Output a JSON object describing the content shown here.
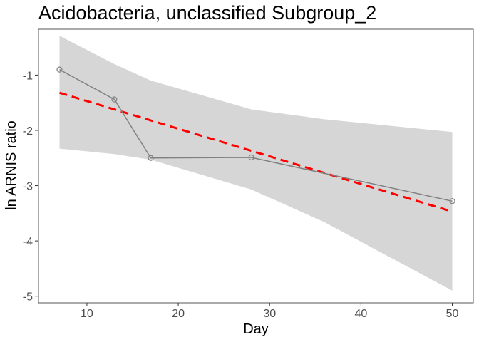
{
  "chart_data": {
    "type": "line",
    "title": "Acidobacteria, unclassified Subgroup_2",
    "xlabel": "Day",
    "ylabel": "ln ARNIS ratio",
    "xlim": [
      4.7,
      52.3
    ],
    "ylim": [
      -5.12,
      -0.17
    ],
    "x_ticks": [
      10,
      20,
      30,
      40,
      50
    ],
    "y_ticks": [
      -1,
      -2,
      -3,
      -4,
      -5
    ],
    "grid": false,
    "colors": {
      "observed": "#808080",
      "fit": "#ff0000",
      "confidence_band": "#d6d6d6",
      "panel_border": "#555555"
    },
    "series": [
      {
        "kind": "observed",
        "style": "line-with-open-circles",
        "x": [
          7,
          13,
          17,
          28,
          50
        ],
        "y": [
          -0.9,
          -1.44,
          -2.5,
          -2.49,
          -3.28
        ]
      },
      {
        "kind": "linear-fit",
        "style": "dashed",
        "x": [
          7,
          50
        ],
        "y": [
          -1.32,
          -3.47
        ]
      },
      {
        "kind": "confidence-band",
        "style": "filled",
        "x": [
          7,
          13,
          17,
          28,
          36,
          50
        ],
        "upper": [
          -0.29,
          -0.8,
          -1.1,
          -1.62,
          -1.8,
          -2.03
        ],
        "lower": [
          -2.33,
          -2.43,
          -2.53,
          -3.07,
          -3.66,
          -4.9
        ]
      }
    ]
  }
}
